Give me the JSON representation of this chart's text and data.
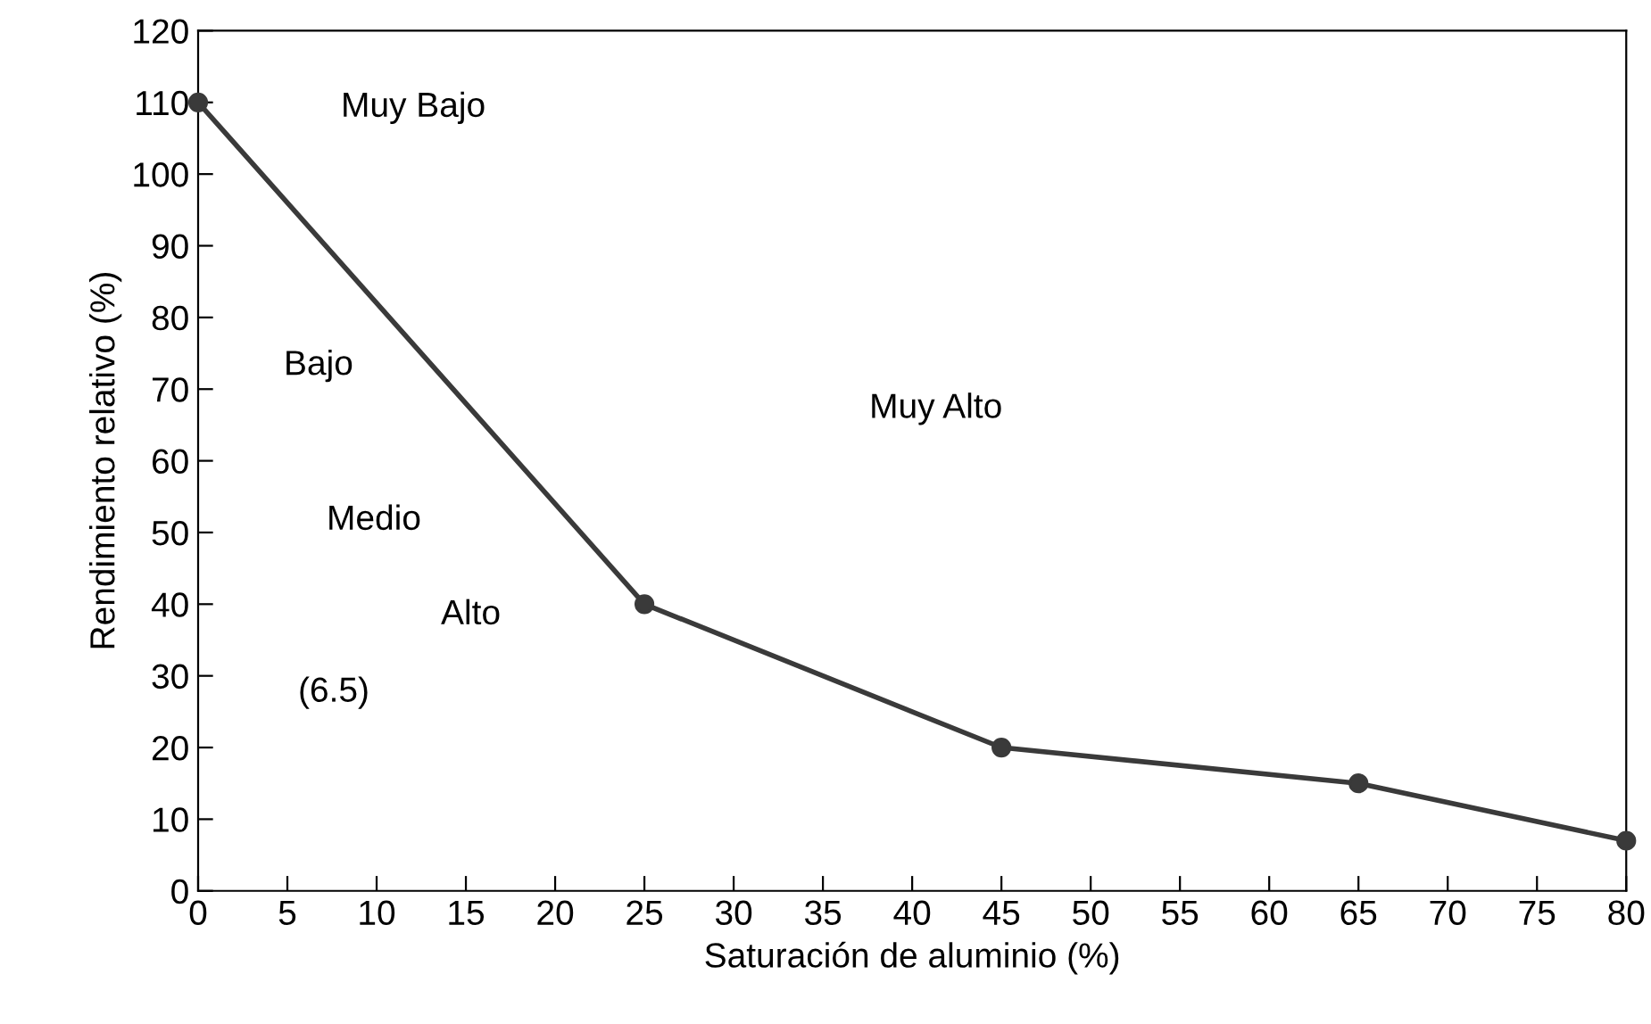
{
  "chart_data": {
    "type": "line",
    "xlabel": "Saturación de aluminio (%)",
    "ylabel": "Rendimiento relativo (%)",
    "x": [
      0,
      25,
      45,
      65,
      80
    ],
    "series": [
      {
        "color": "#3a3a3a",
        "values": [
          110,
          40,
          20,
          15,
          7
        ]
      }
    ],
    "xlim": [
      0,
      80
    ],
    "xticks": [
      0,
      5,
      10,
      15,
      20,
      25,
      30,
      35,
      40,
      45,
      50,
      55,
      60,
      65,
      70,
      75,
      80
    ],
    "ylim": [
      0,
      120
    ],
    "yticks": [
      0,
      10,
      20,
      30,
      40,
      50,
      60,
      70,
      80,
      90,
      100,
      110,
      120
    ],
    "marker": "circle",
    "line_style": "solid",
    "grid": false,
    "annotations": [
      "Muy Bajo",
      "Bajo",
      "Medio",
      "Alto",
      "(6.5)",
      "Muy Alto"
    ]
  }
}
